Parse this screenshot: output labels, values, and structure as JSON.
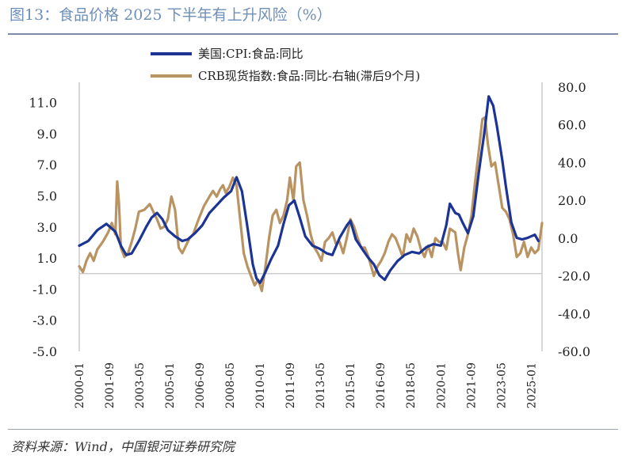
{
  "header": {
    "title": "图13：食品价格 2025 下半年有上升风险（%）"
  },
  "footer": {
    "source": "资料来源：Wind，中国银河证券研究院"
  },
  "colors": {
    "cpi": "#1c3494",
    "crb": "#b99462",
    "title": "#6e8fb8"
  },
  "chart_data": {
    "type": "line",
    "title": "",
    "legend_position": "top",
    "left_axis": {
      "ylim": [
        -5,
        12
      ],
      "ticks": [
        11.0,
        9.0,
        7.0,
        5.0,
        3.0,
        1.0,
        -1.0,
        -3.0,
        -5.0
      ],
      "tick_labels": [
        "11.0",
        "9.0",
        "7.0",
        "5.0",
        "3.0",
        "1.0",
        "-1.0",
        "-3.0",
        "-5.0"
      ]
    },
    "right_axis": {
      "ylim": [
        -60,
        80
      ],
      "ticks": [
        80,
        60,
        40,
        20,
        0,
        -20,
        -40,
        -60
      ],
      "tick_labels": [
        "80.0",
        "60.0",
        "40.0",
        "20.0",
        "0.0",
        "-20.0",
        "-40.0",
        "-60.0"
      ]
    },
    "x_ticks": [
      "2000-01",
      "2001-09",
      "2003-05",
      "2005-01",
      "2006-09",
      "2008-05",
      "2010-01",
      "2011-09",
      "2013-05",
      "2015-01",
      "2016-09",
      "2018-05",
      "2020-01",
      "2021-09",
      "2023-05",
      "2025-01"
    ],
    "series": [
      {
        "name": "美国:CPI:食品:同比",
        "axis": "left",
        "points": [
          [
            2000.0,
            1.8
          ],
          [
            2000.5,
            2.1
          ],
          [
            2001.0,
            2.8
          ],
          [
            2001.5,
            3.2
          ],
          [
            2002.0,
            2.7
          ],
          [
            2002.3,
            1.8
          ],
          [
            2002.6,
            1.2
          ],
          [
            2002.9,
            1.3
          ],
          [
            2003.3,
            2.1
          ],
          [
            2003.7,
            3.0
          ],
          [
            2004.0,
            3.6
          ],
          [
            2004.3,
            3.9
          ],
          [
            2004.6,
            3.5
          ],
          [
            2004.9,
            2.8
          ],
          [
            2005.3,
            2.4
          ],
          [
            2005.7,
            2.1
          ],
          [
            2006.0,
            2.2
          ],
          [
            2006.4,
            2.6
          ],
          [
            2006.8,
            3.1
          ],
          [
            2007.2,
            3.9
          ],
          [
            2007.6,
            4.4
          ],
          [
            2008.0,
            4.9
          ],
          [
            2008.4,
            5.3
          ],
          [
            2008.7,
            6.2
          ],
          [
            2009.0,
            5.3
          ],
          [
            2009.3,
            3.0
          ],
          [
            2009.6,
            0.6
          ],
          [
            2009.8,
            -0.3
          ],
          [
            2010.0,
            -0.6
          ],
          [
            2010.3,
            0.1
          ],
          [
            2010.6,
            0.9
          ],
          [
            2011.0,
            1.8
          ],
          [
            2011.3,
            3.2
          ],
          [
            2011.6,
            4.4
          ],
          [
            2011.9,
            4.7
          ],
          [
            2012.2,
            3.6
          ],
          [
            2012.5,
            2.4
          ],
          [
            2012.9,
            1.8
          ],
          [
            2013.3,
            1.6
          ],
          [
            2013.7,
            1.3
          ],
          [
            2014.0,
            1.2
          ],
          [
            2014.4,
            2.3
          ],
          [
            2014.8,
            3.1
          ],
          [
            2015.0,
            3.4
          ],
          [
            2015.3,
            2.2
          ],
          [
            2015.7,
            1.5
          ],
          [
            2016.0,
            1.0
          ],
          [
            2016.3,
            0.6
          ],
          [
            2016.6,
            -0.1
          ],
          [
            2016.9,
            -0.4
          ],
          [
            2017.2,
            0.2
          ],
          [
            2017.6,
            0.8
          ],
          [
            2018.0,
            1.2
          ],
          [
            2018.4,
            1.4
          ],
          [
            2018.8,
            1.3
          ],
          [
            2019.2,
            1.7
          ],
          [
            2019.6,
            1.9
          ],
          [
            2020.0,
            1.8
          ],
          [
            2020.3,
            3.1
          ],
          [
            2020.5,
            4.5
          ],
          [
            2020.8,
            3.9
          ],
          [
            2021.0,
            3.8
          ],
          [
            2021.2,
            3.3
          ],
          [
            2021.5,
            2.6
          ],
          [
            2021.8,
            3.7
          ],
          [
            2022.1,
            6.5
          ],
          [
            2022.4,
            9.0
          ],
          [
            2022.65,
            11.4
          ],
          [
            2022.9,
            10.8
          ],
          [
            2023.1,
            9.5
          ],
          [
            2023.4,
            7.3
          ],
          [
            2023.6,
            5.6
          ],
          [
            2023.9,
            3.3
          ],
          [
            2024.2,
            2.3
          ],
          [
            2024.5,
            2.2
          ],
          [
            2024.8,
            2.3
          ],
          [
            2025.0,
            2.4
          ],
          [
            2025.2,
            2.5
          ],
          [
            2025.4,
            2.1
          ]
        ]
      },
      {
        "name": "CRB现货指数:食品:同比-右轴(滞后9个月)",
        "axis": "right",
        "points": [
          [
            2000.0,
            -15
          ],
          [
            2000.2,
            -18
          ],
          [
            2000.4,
            -12
          ],
          [
            2000.6,
            -8
          ],
          [
            2000.8,
            -12
          ],
          [
            2001.0,
            -6
          ],
          [
            2001.3,
            -2
          ],
          [
            2001.6,
            3
          ],
          [
            2001.8,
            8
          ],
          [
            2002.0,
            2
          ],
          [
            2002.1,
            30
          ],
          [
            2002.2,
            18
          ],
          [
            2002.3,
            -5
          ],
          [
            2002.5,
            -10
          ],
          [
            2002.7,
            -8
          ],
          [
            2002.9,
            -2
          ],
          [
            2003.1,
            5
          ],
          [
            2003.3,
            14
          ],
          [
            2003.6,
            15
          ],
          [
            2003.9,
            18
          ],
          [
            2004.1,
            14
          ],
          [
            2004.3,
            10
          ],
          [
            2004.5,
            5
          ],
          [
            2004.7,
            6
          ],
          [
            2004.9,
            10
          ],
          [
            2005.1,
            22
          ],
          [
            2005.3,
            15
          ],
          [
            2005.5,
            -5
          ],
          [
            2005.7,
            -8
          ],
          [
            2005.9,
            -4
          ],
          [
            2006.1,
            0
          ],
          [
            2006.3,
            2
          ],
          [
            2006.6,
            10
          ],
          [
            2006.9,
            17
          ],
          [
            2007.2,
            22
          ],
          [
            2007.4,
            25
          ],
          [
            2007.6,
            22
          ],
          [
            2007.8,
            26
          ],
          [
            2007.95,
            28
          ],
          [
            2008.1,
            24
          ],
          [
            2008.3,
            27
          ],
          [
            2008.5,
            32
          ],
          [
            2008.7,
            28
          ],
          [
            2008.9,
            10
          ],
          [
            2009.1,
            -8
          ],
          [
            2009.3,
            -15
          ],
          [
            2009.5,
            -20
          ],
          [
            2009.7,
            -25
          ],
          [
            2009.9,
            -22
          ],
          [
            2010.1,
            -28
          ],
          [
            2010.3,
            -15
          ],
          [
            2010.5,
            0
          ],
          [
            2010.7,
            12
          ],
          [
            2010.9,
            15
          ],
          [
            2011.1,
            8
          ],
          [
            2011.3,
            12
          ],
          [
            2011.5,
            20
          ],
          [
            2011.65,
            32
          ],
          [
            2011.85,
            20
          ],
          [
            2012.0,
            38
          ],
          [
            2012.2,
            40
          ],
          [
            2012.4,
            20
          ],
          [
            2012.6,
            12
          ],
          [
            2012.8,
            2
          ],
          [
            2013.0,
            -5
          ],
          [
            2013.2,
            -8
          ],
          [
            2013.4,
            -12
          ],
          [
            2013.6,
            -2
          ],
          [
            2013.8,
            0
          ],
          [
            2014.0,
            3
          ],
          [
            2014.2,
            -3
          ],
          [
            2014.4,
            -2
          ],
          [
            2014.6,
            -8
          ],
          [
            2014.8,
            0
          ],
          [
            2015.0,
            10
          ],
          [
            2015.2,
            6
          ],
          [
            2015.4,
            0
          ],
          [
            2015.6,
            -5
          ],
          [
            2015.8,
            -5
          ],
          [
            2016.0,
            -10
          ],
          [
            2016.3,
            -20
          ],
          [
            2016.5,
            -15
          ],
          [
            2016.7,
            -12
          ],
          [
            2016.9,
            -8
          ],
          [
            2017.1,
            -2
          ],
          [
            2017.3,
            2
          ],
          [
            2017.5,
            0
          ],
          [
            2017.7,
            -5
          ],
          [
            2017.9,
            -10
          ],
          [
            2018.1,
            2
          ],
          [
            2018.3,
            -2
          ],
          [
            2018.5,
            5
          ],
          [
            2018.7,
            1
          ],
          [
            2018.9,
            -6
          ],
          [
            2019.1,
            -10
          ],
          [
            2019.3,
            -4
          ],
          [
            2019.5,
            -10
          ],
          [
            2019.7,
            0
          ],
          [
            2019.9,
            -2
          ],
          [
            2020.1,
            -2
          ],
          [
            2020.3,
            -6
          ],
          [
            2020.5,
            5
          ],
          [
            2020.8,
            3
          ],
          [
            2020.95,
            -8
          ],
          [
            2021.1,
            -17
          ],
          [
            2021.3,
            -5
          ],
          [
            2021.5,
            2
          ],
          [
            2021.7,
            12
          ],
          [
            2021.9,
            30
          ],
          [
            2022.1,
            46
          ],
          [
            2022.3,
            63
          ],
          [
            2022.45,
            64
          ],
          [
            2022.6,
            50
          ],
          [
            2022.8,
            38
          ],
          [
            2023.0,
            40
          ],
          [
            2023.2,
            28
          ],
          [
            2023.4,
            16
          ],
          [
            2023.6,
            14
          ],
          [
            2023.8,
            10
          ],
          [
            2024.0,
            2
          ],
          [
            2024.2,
            -10
          ],
          [
            2024.4,
            -8
          ],
          [
            2024.6,
            -2
          ],
          [
            2024.8,
            -10
          ],
          [
            2025.0,
            -5
          ],
          [
            2025.2,
            -8
          ],
          [
            2025.4,
            -6
          ],
          [
            2025.6,
            8
          ]
        ]
      }
    ]
  }
}
